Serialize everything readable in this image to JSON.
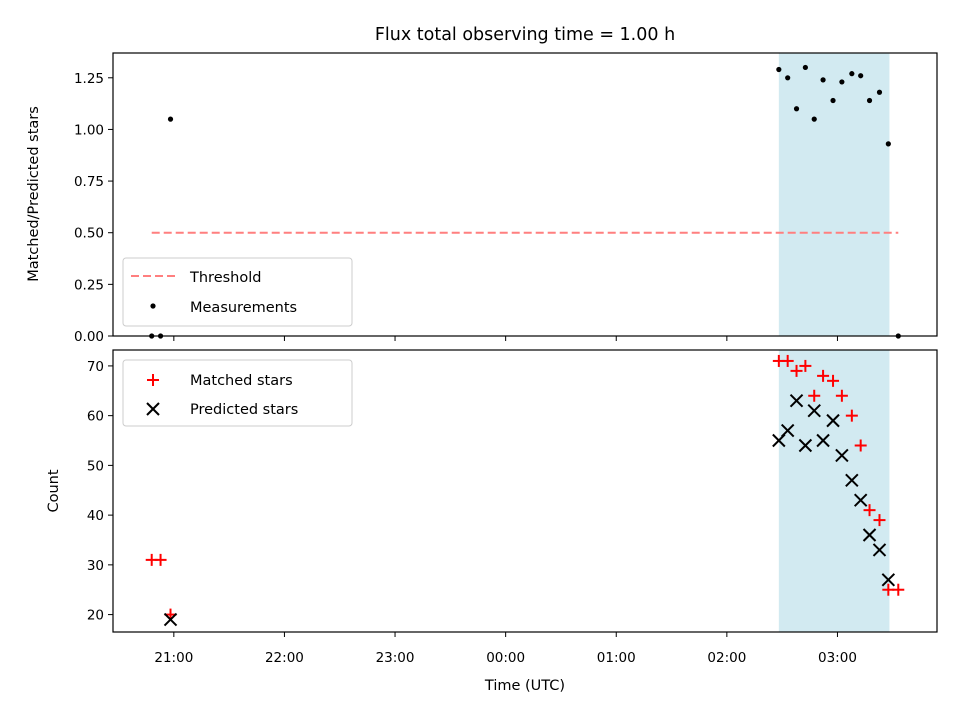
{
  "chart_data": [
    {
      "type": "scatter",
      "title": "Flux total observing time = 1.00 h",
      "xlabel": "",
      "ylabel": "Matched/Predicted stars",
      "ylim": [
        0,
        1.37
      ],
      "yticks": [
        "0.00",
        "0.25",
        "0.50",
        "0.75",
        "1.00",
        "1.25"
      ],
      "grid": false,
      "legend_position": "lower-left",
      "highlight_span": {
        "from_hours": 2.47,
        "to_hours": 3.47,
        "color": "#add8e6"
      },
      "threshold": {
        "name": "Threshold",
        "value": 0.5,
        "from_hours": -3.2,
        "to_hours": 3.55,
        "color": "#ff7f7f"
      },
      "series": [
        {
          "name": "Measurements",
          "marker": "dot",
          "color": "#000000",
          "x_hours": [
            -3.2,
            -3.12,
            -3.03,
            2.47,
            2.55,
            2.63,
            2.71,
            2.79,
            2.87,
            2.96,
            3.04,
            3.13,
            3.21,
            3.29,
            3.38,
            3.46,
            3.55
          ],
          "y": [
            0.0,
            0.0,
            1.05,
            1.29,
            1.25,
            1.1,
            1.3,
            1.05,
            1.24,
            1.14,
            1.23,
            1.27,
            1.26,
            1.14,
            1.18,
            0.93,
            0.0
          ]
        }
      ]
    },
    {
      "type": "scatter",
      "title": "",
      "xlabel": "Time (UTC)",
      "ylabel": "Count",
      "ylim": [
        16.5,
        73.2
      ],
      "yticks": [
        "20",
        "30",
        "40",
        "50",
        "60",
        "70"
      ],
      "xlim_hours": [
        -3.55,
        3.9
      ],
      "xticks": [
        "21:00",
        "22:00",
        "23:00",
        "00:00",
        "01:00",
        "02:00",
        "03:00"
      ],
      "grid": false,
      "legend_position": "upper-left",
      "highlight_span": {
        "from_hours": 2.47,
        "to_hours": 3.47,
        "color": "#add8e6"
      },
      "series": [
        {
          "name": "Matched stars",
          "marker": "plus",
          "color": "#ff0000",
          "x_hours": [
            -3.2,
            -3.12,
            -3.03,
            2.47,
            2.55,
            2.63,
            2.71,
            2.79,
            2.87,
            2.96,
            3.04,
            3.13,
            3.21,
            3.29,
            3.38,
            3.46,
            3.55
          ],
          "y": [
            31,
            31,
            20,
            71,
            71,
            69,
            70,
            64,
            68,
            67,
            64,
            60,
            54,
            41,
            39,
            25,
            25
          ]
        },
        {
          "name": "Predicted stars",
          "marker": "x",
          "color": "#000000",
          "x_hours": [
            -3.03,
            2.47,
            2.55,
            2.63,
            2.71,
            2.79,
            2.87,
            2.96,
            3.04,
            3.13,
            3.21,
            3.29,
            3.38,
            3.46
          ],
          "y": [
            19,
            55,
            57,
            63,
            54,
            61,
            55,
            59,
            52,
            47,
            43,
            36,
            33,
            27
          ]
        }
      ]
    }
  ]
}
